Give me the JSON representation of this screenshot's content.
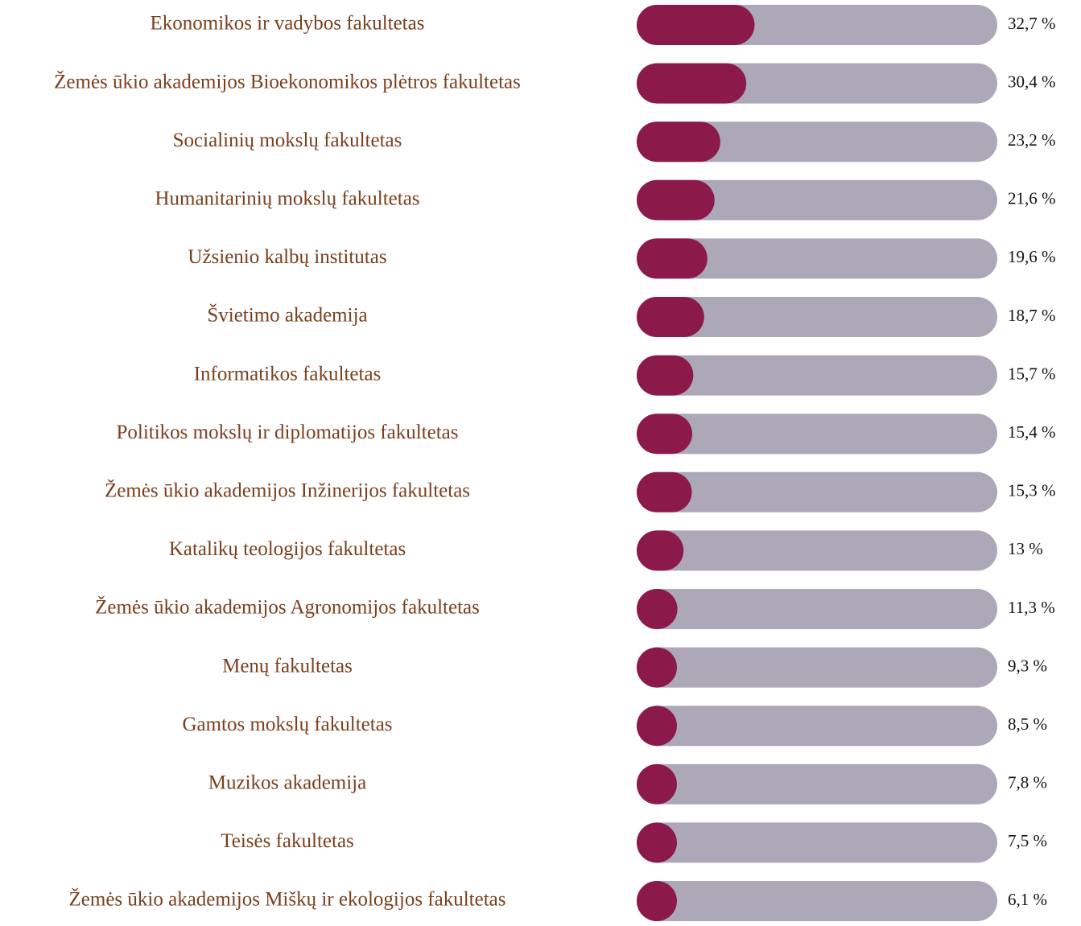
{
  "chart_data": {
    "type": "bar",
    "orientation": "horizontal",
    "categories": [
      "Ekonomikos ir vadybos fakultetas",
      "Žemės ūkio akademijos Bioekonomikos plėtros fakultetas",
      "Socialinių mokslų fakultetas",
      "Humanitarinių mokslų fakultetas",
      "Užsienio kalbų institutas",
      "Švietimo akademija",
      "Informatikos fakultetas",
      "Politikos mokslų ir diplomatijos fakultetas",
      "Žemės ūkio akademijos Inžinerijos fakultetas",
      "Katalikų teologijos fakultetas",
      "Žemės ūkio akademijos Agronomijos fakultetas",
      "Menų fakultetas",
      "Gamtos mokslų fakultetas",
      "Muzikos akademija",
      "Teisės fakultetas",
      "Žemės ūkio akademijos Miškų ir ekologijos fakultetas"
    ],
    "values": [
      32.7,
      30.4,
      23.2,
      21.6,
      19.6,
      18.7,
      15.7,
      15.4,
      15.3,
      13,
      11.3,
      9.3,
      8.5,
      7.8,
      7.5,
      6.1
    ],
    "value_labels": [
      "32,7 %",
      "30,4 %",
      "23,2 %",
      "21,6 %",
      "19,6 %",
      "18,7 %",
      "15,7 %",
      "15,4 %",
      "15,3 %",
      "13 %",
      "11,3 %",
      "9,3 %",
      "8,5 %",
      "7,8 %",
      "7,5 %",
      "6,1 %"
    ],
    "color": "#8b1a4a",
    "track_color": "#aca8b8",
    "xlim": [
      0,
      100
    ]
  }
}
